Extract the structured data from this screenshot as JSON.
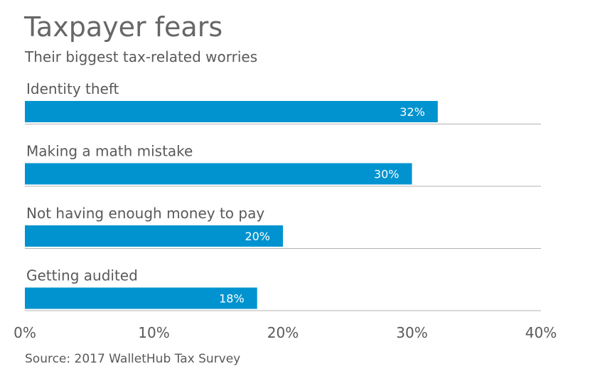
{
  "header": {
    "title": "Taxpayer fears",
    "subtitle": "Their biggest tax-related worries"
  },
  "footer": {
    "source": "Source: 2017 WalletHub Tax Survey"
  },
  "chart_data": {
    "type": "bar",
    "orientation": "horizontal",
    "title": "Taxpayer fears",
    "subtitle": "Their biggest tax-related worries",
    "categories": [
      "Identity theft",
      "Making a math mistake",
      "Not having enough money to pay",
      "Getting audited"
    ],
    "values": [
      32,
      30,
      20,
      18
    ],
    "value_labels": [
      "32%",
      "30%",
      "20%",
      "18%"
    ],
    "xlim": [
      0,
      40
    ],
    "x_ticks": [
      0,
      10,
      20,
      30,
      40
    ],
    "x_tick_labels": [
      "0%",
      "10%",
      "20%",
      "30%",
      "40%"
    ],
    "xlabel": "",
    "ylabel": "",
    "grid": false,
    "legend": "none",
    "colors": {
      "bar": "#0093d0",
      "label_inside": "#ffffff",
      "baseline": "#b3b3b3",
      "text": "#595959"
    }
  }
}
